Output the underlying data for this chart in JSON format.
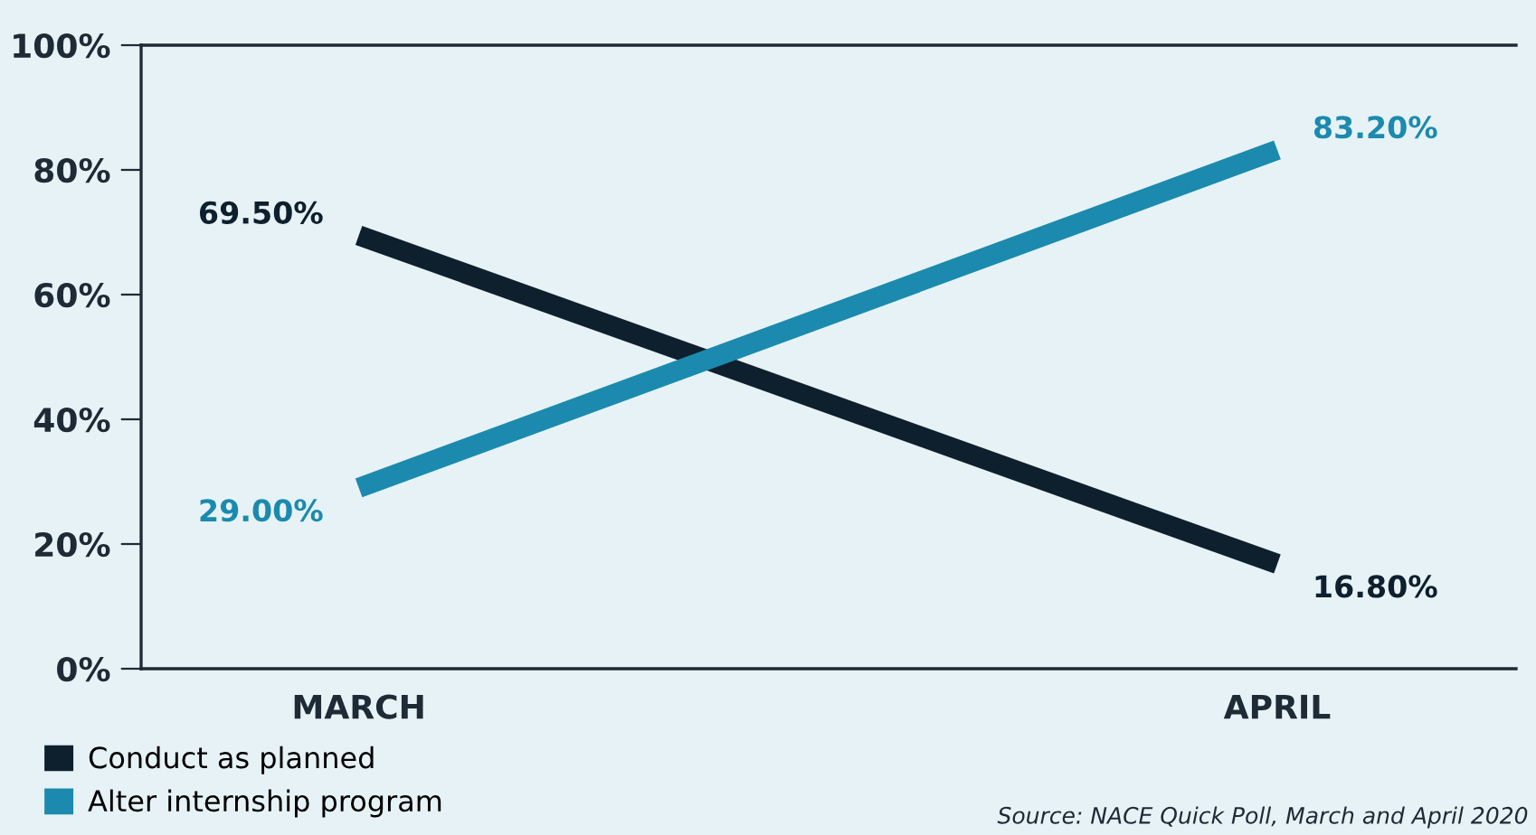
{
  "chart_data": {
    "type": "line",
    "categories": [
      "MARCH",
      "APRIL"
    ],
    "series": [
      {
        "name": "Conduct as planned",
        "color": "#0e1f2e",
        "values": [
          69.5,
          16.8
        ],
        "value_labels": [
          "69.50%",
          "16.80%"
        ]
      },
      {
        "name": "Alter internship program",
        "color": "#1b8aae",
        "values": [
          29.0,
          83.2
        ],
        "value_labels": [
          "29.00%",
          "83.20%"
        ]
      }
    ],
    "ylim": [
      0,
      100
    ],
    "yticks": [
      {
        "value": 0,
        "label": "0%"
      },
      {
        "value": 20,
        "label": "20%"
      },
      {
        "value": 40,
        "label": "40%"
      },
      {
        "value": 60,
        "label": "60%"
      },
      {
        "value": 80,
        "label": "80%"
      },
      {
        "value": 100,
        "label": "100%"
      }
    ],
    "grid": false,
    "legend": "bottom left",
    "marker": "none",
    "line_style": "solid",
    "annotations": [
      "Source: NACE Quick Poll, March and April 2020"
    ]
  }
}
